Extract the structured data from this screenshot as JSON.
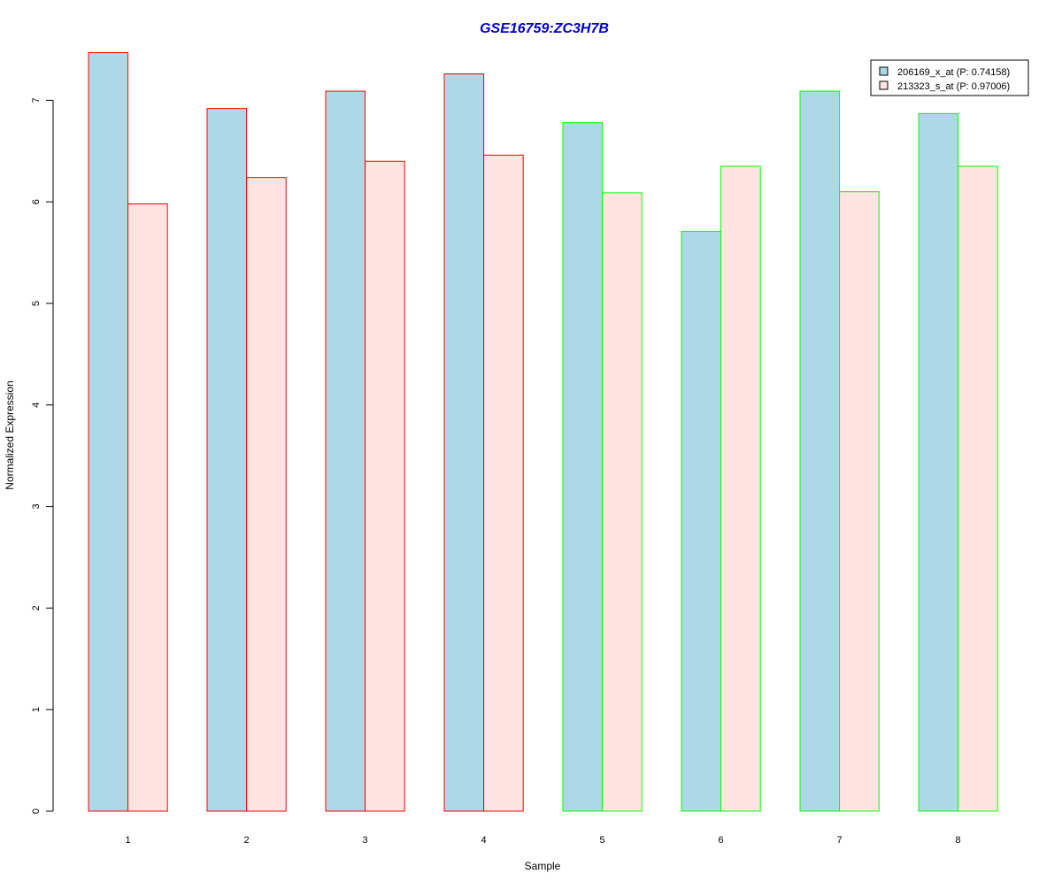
{
  "chart_data": {
    "type": "bar",
    "title": "GSE16759:ZC3H7B",
    "xlabel": "Sample",
    "ylabel": "Normalized Expression",
    "categories": [
      "1",
      "2",
      "3",
      "4",
      "5",
      "6",
      "7",
      "8"
    ],
    "series": [
      {
        "name": "206169_x_at (P: 0.74158)",
        "values": [
          7.47,
          6.92,
          7.09,
          7.26,
          6.78,
          5.71,
          7.09,
          6.87
        ],
        "fill": "#add8e6"
      },
      {
        "name": "213323_s_at (P: 0.97006)",
        "values": [
          5.98,
          6.24,
          6.4,
          6.46,
          6.09,
          6.35,
          6.1,
          6.35
        ],
        "fill": "#ffe4e1"
      }
    ],
    "group_border_colors": [
      "#ff0000",
      "#ff0000",
      "#ff0000",
      "#ff0000",
      "#00ff00",
      "#00ff00",
      "#00ff00",
      "#00ff00"
    ],
    "yticks": [
      0,
      1,
      2,
      3,
      4,
      5,
      6,
      7
    ],
    "ylim": [
      0,
      7.5
    ],
    "grid": false,
    "legend_position": "top-right",
    "title_color": "#0000cc"
  }
}
